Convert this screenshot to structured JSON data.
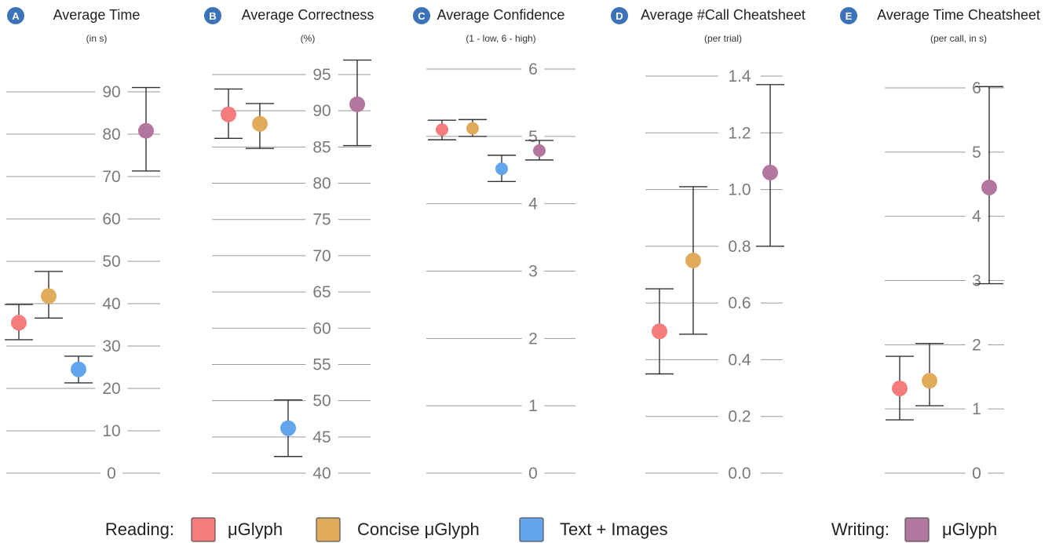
{
  "chart_data": [
    {
      "type": "scatter",
      "badge": "A",
      "title": "Average Time",
      "subtitle": "(in s)",
      "ylim": [
        0,
        90
      ],
      "ticks": [
        0,
        10,
        20,
        30,
        40,
        50,
        60,
        70,
        80,
        90
      ],
      "tick_labels": [
        "0",
        "10",
        "20",
        "30",
        "40",
        "50",
        "60",
        "70",
        "80",
        "90"
      ],
      "grid": true,
      "series": [
        {
          "name": "μGlyph",
          "group": "Reading",
          "color": "#f47c7c",
          "mean": 35.5,
          "ci": [
            31.5,
            39.8
          ]
        },
        {
          "name": "Concise μGlyph",
          "group": "Reading",
          "color": "#e0ab5a",
          "mean": 41.8,
          "ci": [
            36.6,
            47.6
          ]
        },
        {
          "name": "Text + Images",
          "group": "Reading",
          "color": "#62a5ec",
          "mean": 24.5,
          "ci": [
            21.3,
            27.6
          ]
        },
        {
          "name": "μGlyph",
          "group": "Writing",
          "color": "#b3779f",
          "mean": 80.8,
          "ci": [
            71.3,
            91.0
          ]
        }
      ]
    },
    {
      "type": "scatter",
      "badge": "B",
      "title": "Average Correctness",
      "subtitle": "(%)",
      "ylim": [
        40,
        95
      ],
      "ticks": [
        40,
        45,
        50,
        55,
        60,
        65,
        70,
        75,
        80,
        85,
        90,
        95
      ],
      "tick_labels": [
        "40",
        "45",
        "50",
        "55",
        "60",
        "65",
        "70",
        "75",
        "80",
        "85",
        "90",
        "95"
      ],
      "grid": true,
      "series": [
        {
          "name": "μGlyph",
          "group": "Reading",
          "color": "#f47c7c",
          "mean": 89.5,
          "ci": [
            86.2,
            93.0
          ]
        },
        {
          "name": "Concise μGlyph",
          "group": "Reading",
          "color": "#e0ab5a",
          "mean": 88.2,
          "ci": [
            84.8,
            91.0
          ]
        },
        {
          "name": "Text + Images",
          "group": "Reading",
          "color": "#62a5ec",
          "mean": 46.2,
          "ci": [
            42.3,
            50.1
          ]
        },
        {
          "name": "μGlyph",
          "group": "Writing",
          "color": "#b3779f",
          "mean": 90.9,
          "ci": [
            85.2,
            97.0
          ]
        }
      ]
    },
    {
      "type": "scatter",
      "badge": "C",
      "title": "Average Confidence",
      "subtitle": "(1 - low, 6 - high)",
      "ylim": [
        0,
        6
      ],
      "ticks": [
        0,
        1,
        2,
        3,
        4,
        5,
        6
      ],
      "tick_labels": [
        "0",
        "1",
        "2",
        "3",
        "4",
        "5",
        "6"
      ],
      "grid": true,
      "series": [
        {
          "name": "μGlyph",
          "group": "Reading",
          "color": "#f47c7c",
          "mean": 5.1,
          "ci": [
            4.95,
            5.24
          ]
        },
        {
          "name": "Concise μGlyph",
          "group": "Reading",
          "color": "#e0ab5a",
          "mean": 5.12,
          "ci": [
            5.0,
            5.25
          ]
        },
        {
          "name": "Text + Images",
          "group": "Reading",
          "color": "#62a5ec",
          "mean": 4.52,
          "ci": [
            4.33,
            4.72
          ]
        },
        {
          "name": "μGlyph",
          "group": "Writing",
          "color": "#b3779f",
          "mean": 4.79,
          "ci": [
            4.65,
            4.94
          ]
        }
      ]
    },
    {
      "type": "scatter",
      "badge": "D",
      "title": "Average #Call Cheatsheet",
      "subtitle": "(per trial)",
      "ylim": [
        0,
        1.4
      ],
      "ticks": [
        0,
        0.2,
        0.4,
        0.6,
        0.8,
        1.0,
        1.2,
        1.4
      ],
      "tick_labels": [
        "0.0",
        "0.2",
        "0.4",
        "0.6",
        "0.8",
        "1.0",
        "1.2",
        "1.4"
      ],
      "grid": true,
      "series": [
        {
          "name": "μGlyph",
          "group": "Reading",
          "color": "#f47c7c",
          "mean": 0.5,
          "ci": [
            0.35,
            0.65
          ]
        },
        {
          "name": "Concise μGlyph",
          "group": "Reading",
          "color": "#e0ab5a",
          "mean": 0.75,
          "ci": [
            0.49,
            1.01
          ]
        },
        {
          "name": "Text + Images",
          "group": "Reading",
          "color": "#62a5ec",
          "mean": null,
          "ci": null
        },
        {
          "name": "μGlyph",
          "group": "Writing",
          "color": "#b3779f",
          "mean": 1.06,
          "ci": [
            0.8,
            1.37
          ]
        }
      ]
    },
    {
      "type": "scatter",
      "badge": "E",
      "title": "Average Time Cheatsheet",
      "subtitle": "(per call, in s)",
      "ylim": [
        0,
        6
      ],
      "ticks": [
        0,
        1,
        2,
        3,
        4,
        5,
        6
      ],
      "tick_labels": [
        "0",
        "1",
        "2",
        "3",
        "4",
        "5",
        "6"
      ],
      "grid": true,
      "series": [
        {
          "name": "μGlyph",
          "group": "Reading",
          "color": "#f47c7c",
          "mean": 1.32,
          "ci": [
            0.83,
            1.82
          ]
        },
        {
          "name": "Concise μGlyph",
          "group": "Reading",
          "color": "#e0ab5a",
          "mean": 1.44,
          "ci": [
            1.05,
            2.02
          ]
        },
        {
          "name": "Text + Images",
          "group": "Reading",
          "color": "#62a5ec",
          "mean": null,
          "ci": null
        },
        {
          "name": "μGlyph",
          "group": "Writing",
          "color": "#b3779f",
          "mean": 4.45,
          "ci": [
            2.95,
            6.02
          ]
        }
      ]
    }
  ],
  "legend": {
    "placement": "bottom",
    "groups": [
      {
        "label": "Reading:",
        "items": [
          {
            "name": "μGlyph",
            "color": "#f47c7c"
          },
          {
            "name": "Concise μGlyph",
            "color": "#e0ab5a"
          },
          {
            "name": "Text + Images",
            "color": "#62a5ec"
          }
        ]
      },
      {
        "label": "Writing:",
        "items": [
          {
            "name": "μGlyph",
            "color": "#b3779f"
          }
        ]
      }
    ]
  },
  "badge_color": "#3b72b9"
}
